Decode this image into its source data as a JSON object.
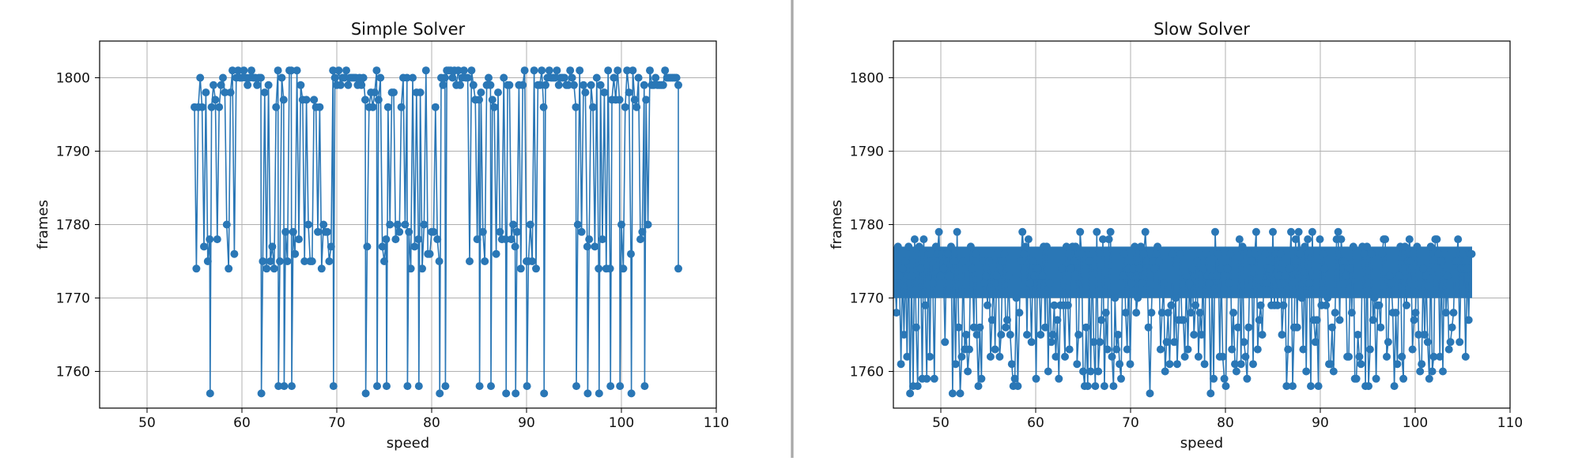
{
  "chart_data": [
    {
      "type": "line",
      "title": "Simple Solver",
      "xlabel": "speed",
      "ylabel": "frames",
      "xlim": [
        45,
        110
      ],
      "ylim": [
        1755,
        1805
      ],
      "xticks": [
        50,
        60,
        70,
        80,
        90,
        100,
        110
      ],
      "yticks": [
        1760,
        1770,
        1780,
        1790,
        1800
      ],
      "grid": true,
      "color": "#2a77b6",
      "x_range": [
        55,
        106
      ],
      "series": [
        {
          "name": "frames",
          "bands": [
            {
              "x": [
                55,
                60
              ],
              "high": 1800,
              "low": 1774
            },
            {
              "x": [
                62,
                70
              ],
              "high": 1800,
              "low": 1774
            },
            {
              "x": [
                73,
                81
              ],
              "high": 1800,
              "low": 1774
            },
            {
              "x": [
                84,
                92
              ],
              "high": 1800,
              "low": 1774
            },
            {
              "x": [
                95,
                103
              ],
              "high": 1800,
              "low": 1774
            }
          ],
          "plateaus": [
            [
              59.5,
              62
            ],
            [
              70,
              73
            ],
            [
              81,
              84
            ],
            [
              92,
              95
            ],
            [
              103,
              105.3
            ]
          ],
          "dips": [
            {
              "x": 56.7,
              "y": 1757
            },
            {
              "x": 62.1,
              "y": 1757
            },
            {
              "x": 63.8,
              "y": 1758
            },
            {
              "x": 64.5,
              "y": 1758
            },
            {
              "x": 65.2,
              "y": 1758
            },
            {
              "x": 69.6,
              "y": 1758
            },
            {
              "x": 73.1,
              "y": 1757
            },
            {
              "x": 74.3,
              "y": 1758
            },
            {
              "x": 75.2,
              "y": 1758
            },
            {
              "x": 77.4,
              "y": 1758
            },
            {
              "x": 78.6,
              "y": 1758
            },
            {
              "x": 80.8,
              "y": 1757
            },
            {
              "x": 81.4,
              "y": 1758
            },
            {
              "x": 85.1,
              "y": 1758
            },
            {
              "x": 86.3,
              "y": 1758
            },
            {
              "x": 87.8,
              "y": 1757
            },
            {
              "x": 88.9,
              "y": 1757
            },
            {
              "x": 90.1,
              "y": 1758
            },
            {
              "x": 91.8,
              "y": 1757
            },
            {
              "x": 95.3,
              "y": 1758
            },
            {
              "x": 96.4,
              "y": 1757
            },
            {
              "x": 97.6,
              "y": 1757
            },
            {
              "x": 98.8,
              "y": 1758
            },
            {
              "x": 99.9,
              "y": 1758
            },
            {
              "x": 101.1,
              "y": 1757
            },
            {
              "x": 102.4,
              "y": 1758
            }
          ],
          "end_points": [
            {
              "x": 106,
              "y": 1799
            },
            {
              "x": 106,
              "y": 1774
            }
          ]
        }
      ]
    },
    {
      "type": "line",
      "title": "Slow Solver",
      "xlabel": "speed",
      "ylabel": "frames",
      "xlim": [
        45,
        110
      ],
      "ylim": [
        1755,
        1805
      ],
      "xticks": [
        50,
        60,
        70,
        80,
        90,
        100,
        110
      ],
      "yticks": [
        1760,
        1770,
        1780,
        1790,
        1800
      ],
      "grid": true,
      "color": "#2a77b6",
      "x_range": [
        45,
        106
      ],
      "series": [
        {
          "name": "frames",
          "high_range": [
            1772,
            1779
          ],
          "low_range": [
            1757,
            1770
          ],
          "dense_band": [
            1770,
            1777
          ]
        }
      ]
    }
  ]
}
